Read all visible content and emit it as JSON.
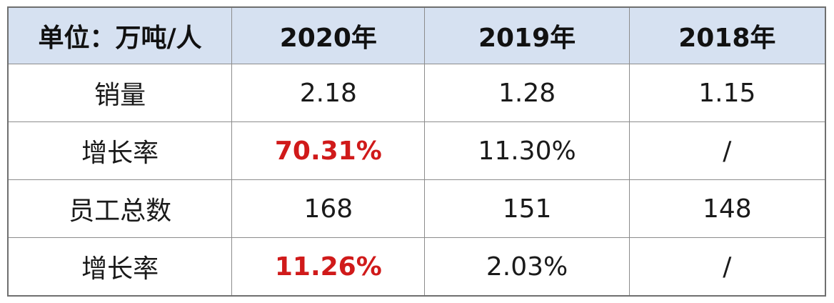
{
  "table": {
    "headers": [
      "单位：万吨/人",
      "2020年",
      "2019年",
      "2018年"
    ],
    "rows": [
      {
        "label": "销量",
        "cells": [
          "2.18",
          "1.28",
          "1.15"
        ]
      },
      {
        "label": "增长率",
        "cells": [
          "70.31%",
          "11.30%",
          "/"
        ]
      },
      {
        "label": "员工总数",
        "cells": [
          "168",
          "151",
          "148"
        ]
      },
      {
        "label": "增长率",
        "cells": [
          "11.26%",
          "2.03%",
          "/"
        ]
      }
    ]
  },
  "colors": {
    "header_bg": "#d6e1f1",
    "highlight_text": "#d01a1a",
    "border": "#8c8c8c"
  }
}
